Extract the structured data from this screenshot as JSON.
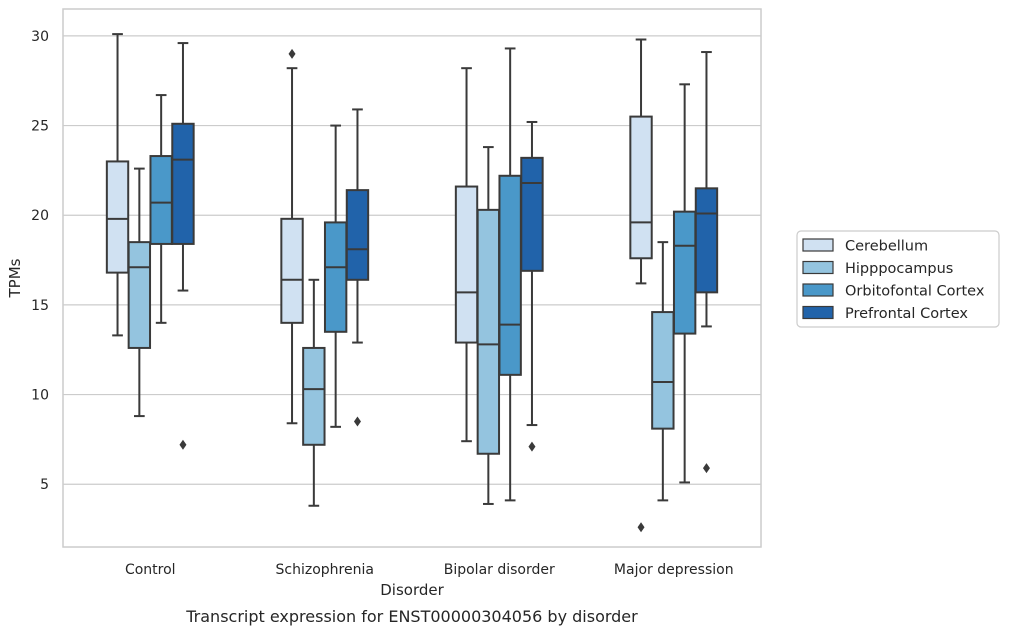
{
  "chart_data": {
    "type": "box",
    "title": "",
    "caption": "Transcript expression for ENST00000304056 by disorder",
    "xlabel": "Disorder",
    "ylabel": "TPMs",
    "ylim": [
      1.5,
      31.5
    ],
    "yticks": [
      5,
      10,
      15,
      20,
      25,
      30
    ],
    "grid": true,
    "legend_position": "right",
    "categories": [
      "Control",
      "Schizophrenia",
      "Bipolar disorder",
      "Major depression"
    ],
    "series": [
      {
        "name": "Cerebellum",
        "color": "#d0e1f2",
        "boxes": [
          {
            "whisker_low": 13.3,
            "q1": 16.8,
            "median": 19.8,
            "q3": 23.0,
            "whisker_high": 30.1,
            "outliers": []
          },
          {
            "whisker_low": 8.4,
            "q1": 14.0,
            "median": 16.4,
            "q3": 19.8,
            "whisker_high": 28.2,
            "outliers": [
              29.0
            ]
          },
          {
            "whisker_low": 7.4,
            "q1": 12.9,
            "median": 15.7,
            "q3": 21.6,
            "whisker_high": 28.2,
            "outliers": []
          },
          {
            "whisker_low": 16.2,
            "q1": 17.6,
            "median": 19.6,
            "q3": 25.5,
            "whisker_high": 29.8,
            "outliers": [
              2.6
            ]
          }
        ]
      },
      {
        "name": "Hipppocampus",
        "color": "#94c4df",
        "boxes": [
          {
            "whisker_low": 8.8,
            "q1": 12.6,
            "median": 17.1,
            "q3": 18.5,
            "whisker_high": 22.6,
            "outliers": []
          },
          {
            "whisker_low": 3.8,
            "q1": 7.2,
            "median": 10.3,
            "q3": 12.6,
            "whisker_high": 16.4,
            "outliers": []
          },
          {
            "whisker_low": 3.9,
            "q1": 6.7,
            "median": 12.8,
            "q3": 20.3,
            "whisker_high": 23.8,
            "outliers": []
          },
          {
            "whisker_low": 4.1,
            "q1": 8.1,
            "median": 10.7,
            "q3": 14.6,
            "whisker_high": 18.5,
            "outliers": []
          }
        ]
      },
      {
        "name": "Orbitofontal Cortex",
        "color": "#4a98c9",
        "boxes": [
          {
            "whisker_low": 14.0,
            "q1": 18.4,
            "median": 20.7,
            "q3": 23.3,
            "whisker_high": 26.7,
            "outliers": []
          },
          {
            "whisker_low": 8.2,
            "q1": 13.5,
            "median": 17.1,
            "q3": 19.6,
            "whisker_high": 25.0,
            "outliers": []
          },
          {
            "whisker_low": 4.1,
            "q1": 11.1,
            "median": 13.9,
            "q3": 22.2,
            "whisker_high": 29.3,
            "outliers": []
          },
          {
            "whisker_low": 5.1,
            "q1": 13.4,
            "median": 18.3,
            "q3": 20.2,
            "whisker_high": 27.3,
            "outliers": []
          }
        ]
      },
      {
        "name": "Prefrontal Cortex",
        "color": "#2163aa",
        "boxes": [
          {
            "whisker_low": 15.8,
            "q1": 18.4,
            "median": 23.1,
            "q3": 25.1,
            "whisker_high": 29.6,
            "outliers": [
              7.2
            ]
          },
          {
            "whisker_low": 12.9,
            "q1": 16.4,
            "median": 18.1,
            "q3": 21.4,
            "whisker_high": 25.9,
            "outliers": [
              8.5
            ]
          },
          {
            "whisker_low": 8.3,
            "q1": 16.9,
            "median": 21.8,
            "q3": 23.2,
            "whisker_high": 25.2,
            "outliers": [
              7.1
            ]
          },
          {
            "whisker_low": 13.8,
            "q1": 15.7,
            "median": 20.1,
            "q3": 21.5,
            "whisker_high": 29.1,
            "outliers": [
              5.9
            ]
          }
        ]
      }
    ]
  }
}
